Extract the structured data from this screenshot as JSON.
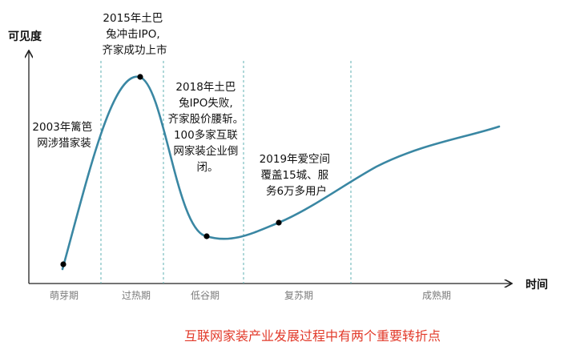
{
  "axes": {
    "y_title": "可见度",
    "x_title": "时间"
  },
  "phases": [
    {
      "label": "萌芽期"
    },
    {
      "label": "过热期"
    },
    {
      "label": "低谷期"
    },
    {
      "label": "复苏期"
    },
    {
      "label": "成熟期"
    }
  ],
  "annotations": [
    {
      "lines": [
        "2003年篱笆",
        "网涉猎家装"
      ]
    },
    {
      "lines": [
        "2015年土巴",
        "兔冲击IPO,",
        "齐家成功上市"
      ]
    },
    {
      "lines": [
        "2018年土巴",
        "兔IPO失败,",
        "齐家股价腰斩。",
        "100多家互联",
        "网家装企业倒",
        "闭。"
      ]
    },
    {
      "lines": [
        "2019年爱空间",
        "覆盖15城、服",
        "务6万多用户"
      ]
    }
  ],
  "caption": "互联网家装产业发展过程中有两个重要转折点",
  "colors": {
    "curve": "#3a87a3",
    "guide": "#5fb0b3",
    "axis": "#222222",
    "caption": "#e23a2a"
  }
}
